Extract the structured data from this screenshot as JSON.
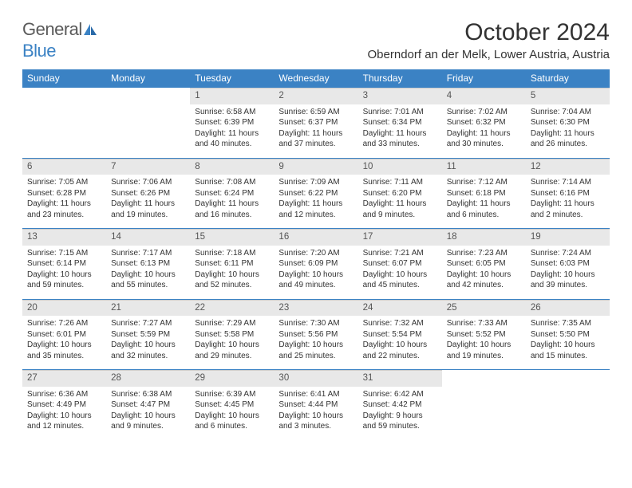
{
  "logo": {
    "part1": "General",
    "part2": "Blue"
  },
  "title": "October 2024",
  "location": "Oberndorf an der Melk, Lower Austria, Austria",
  "colors": {
    "header_bg": "#3b82c4",
    "daynum_bg": "#e8e8e8",
    "text": "#333333",
    "logo_gray": "#5a5a5a",
    "logo_blue": "#3b82c4"
  },
  "weekdays": [
    "Sunday",
    "Monday",
    "Tuesday",
    "Wednesday",
    "Thursday",
    "Friday",
    "Saturday"
  ],
  "weeks": [
    [
      null,
      null,
      {
        "n": "1",
        "sr": "Sunrise: 6:58 AM",
        "ss": "Sunset: 6:39 PM",
        "dl1": "Daylight: 11 hours",
        "dl2": "and 40 minutes."
      },
      {
        "n": "2",
        "sr": "Sunrise: 6:59 AM",
        "ss": "Sunset: 6:37 PM",
        "dl1": "Daylight: 11 hours",
        "dl2": "and 37 minutes."
      },
      {
        "n": "3",
        "sr": "Sunrise: 7:01 AM",
        "ss": "Sunset: 6:34 PM",
        "dl1": "Daylight: 11 hours",
        "dl2": "and 33 minutes."
      },
      {
        "n": "4",
        "sr": "Sunrise: 7:02 AM",
        "ss": "Sunset: 6:32 PM",
        "dl1": "Daylight: 11 hours",
        "dl2": "and 30 minutes."
      },
      {
        "n": "5",
        "sr": "Sunrise: 7:04 AM",
        "ss": "Sunset: 6:30 PM",
        "dl1": "Daylight: 11 hours",
        "dl2": "and 26 minutes."
      }
    ],
    [
      {
        "n": "6",
        "sr": "Sunrise: 7:05 AM",
        "ss": "Sunset: 6:28 PM",
        "dl1": "Daylight: 11 hours",
        "dl2": "and 23 minutes."
      },
      {
        "n": "7",
        "sr": "Sunrise: 7:06 AM",
        "ss": "Sunset: 6:26 PM",
        "dl1": "Daylight: 11 hours",
        "dl2": "and 19 minutes."
      },
      {
        "n": "8",
        "sr": "Sunrise: 7:08 AM",
        "ss": "Sunset: 6:24 PM",
        "dl1": "Daylight: 11 hours",
        "dl2": "and 16 minutes."
      },
      {
        "n": "9",
        "sr": "Sunrise: 7:09 AM",
        "ss": "Sunset: 6:22 PM",
        "dl1": "Daylight: 11 hours",
        "dl2": "and 12 minutes."
      },
      {
        "n": "10",
        "sr": "Sunrise: 7:11 AM",
        "ss": "Sunset: 6:20 PM",
        "dl1": "Daylight: 11 hours",
        "dl2": "and 9 minutes."
      },
      {
        "n": "11",
        "sr": "Sunrise: 7:12 AM",
        "ss": "Sunset: 6:18 PM",
        "dl1": "Daylight: 11 hours",
        "dl2": "and 6 minutes."
      },
      {
        "n": "12",
        "sr": "Sunrise: 7:14 AM",
        "ss": "Sunset: 6:16 PM",
        "dl1": "Daylight: 11 hours",
        "dl2": "and 2 minutes."
      }
    ],
    [
      {
        "n": "13",
        "sr": "Sunrise: 7:15 AM",
        "ss": "Sunset: 6:14 PM",
        "dl1": "Daylight: 10 hours",
        "dl2": "and 59 minutes."
      },
      {
        "n": "14",
        "sr": "Sunrise: 7:17 AM",
        "ss": "Sunset: 6:13 PM",
        "dl1": "Daylight: 10 hours",
        "dl2": "and 55 minutes."
      },
      {
        "n": "15",
        "sr": "Sunrise: 7:18 AM",
        "ss": "Sunset: 6:11 PM",
        "dl1": "Daylight: 10 hours",
        "dl2": "and 52 minutes."
      },
      {
        "n": "16",
        "sr": "Sunrise: 7:20 AM",
        "ss": "Sunset: 6:09 PM",
        "dl1": "Daylight: 10 hours",
        "dl2": "and 49 minutes."
      },
      {
        "n": "17",
        "sr": "Sunrise: 7:21 AM",
        "ss": "Sunset: 6:07 PM",
        "dl1": "Daylight: 10 hours",
        "dl2": "and 45 minutes."
      },
      {
        "n": "18",
        "sr": "Sunrise: 7:23 AM",
        "ss": "Sunset: 6:05 PM",
        "dl1": "Daylight: 10 hours",
        "dl2": "and 42 minutes."
      },
      {
        "n": "19",
        "sr": "Sunrise: 7:24 AM",
        "ss": "Sunset: 6:03 PM",
        "dl1": "Daylight: 10 hours",
        "dl2": "and 39 minutes."
      }
    ],
    [
      {
        "n": "20",
        "sr": "Sunrise: 7:26 AM",
        "ss": "Sunset: 6:01 PM",
        "dl1": "Daylight: 10 hours",
        "dl2": "and 35 minutes."
      },
      {
        "n": "21",
        "sr": "Sunrise: 7:27 AM",
        "ss": "Sunset: 5:59 PM",
        "dl1": "Daylight: 10 hours",
        "dl2": "and 32 minutes."
      },
      {
        "n": "22",
        "sr": "Sunrise: 7:29 AM",
        "ss": "Sunset: 5:58 PM",
        "dl1": "Daylight: 10 hours",
        "dl2": "and 29 minutes."
      },
      {
        "n": "23",
        "sr": "Sunrise: 7:30 AM",
        "ss": "Sunset: 5:56 PM",
        "dl1": "Daylight: 10 hours",
        "dl2": "and 25 minutes."
      },
      {
        "n": "24",
        "sr": "Sunrise: 7:32 AM",
        "ss": "Sunset: 5:54 PM",
        "dl1": "Daylight: 10 hours",
        "dl2": "and 22 minutes."
      },
      {
        "n": "25",
        "sr": "Sunrise: 7:33 AM",
        "ss": "Sunset: 5:52 PM",
        "dl1": "Daylight: 10 hours",
        "dl2": "and 19 minutes."
      },
      {
        "n": "26",
        "sr": "Sunrise: 7:35 AM",
        "ss": "Sunset: 5:50 PM",
        "dl1": "Daylight: 10 hours",
        "dl2": "and 15 minutes."
      }
    ],
    [
      {
        "n": "27",
        "sr": "Sunrise: 6:36 AM",
        "ss": "Sunset: 4:49 PM",
        "dl1": "Daylight: 10 hours",
        "dl2": "and 12 minutes."
      },
      {
        "n": "28",
        "sr": "Sunrise: 6:38 AM",
        "ss": "Sunset: 4:47 PM",
        "dl1": "Daylight: 10 hours",
        "dl2": "and 9 minutes."
      },
      {
        "n": "29",
        "sr": "Sunrise: 6:39 AM",
        "ss": "Sunset: 4:45 PM",
        "dl1": "Daylight: 10 hours",
        "dl2": "and 6 minutes."
      },
      {
        "n": "30",
        "sr": "Sunrise: 6:41 AM",
        "ss": "Sunset: 4:44 PM",
        "dl1": "Daylight: 10 hours",
        "dl2": "and 3 minutes."
      },
      {
        "n": "31",
        "sr": "Sunrise: 6:42 AM",
        "ss": "Sunset: 4:42 PM",
        "dl1": "Daylight: 9 hours",
        "dl2": "and 59 minutes."
      },
      null,
      null
    ]
  ]
}
